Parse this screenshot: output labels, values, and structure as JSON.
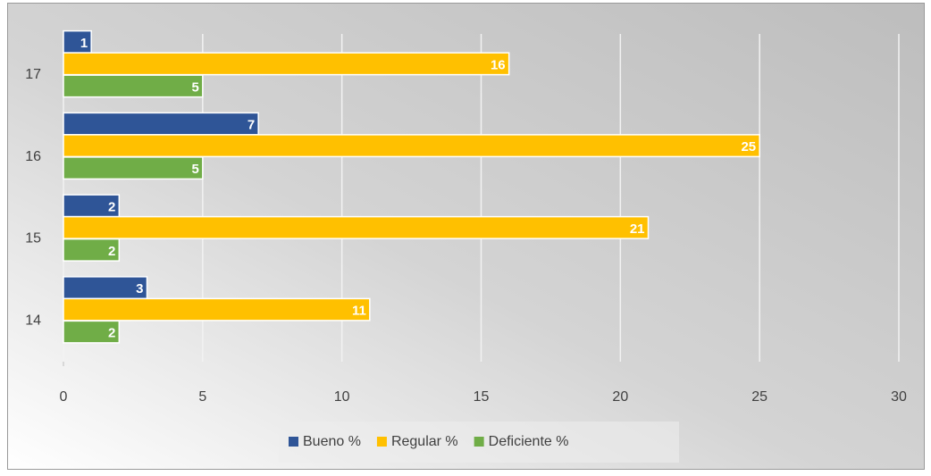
{
  "chart_data": {
    "type": "barh",
    "categories": [
      "14",
      "15",
      "16",
      "17"
    ],
    "series": [
      {
        "name": "Bueno %",
        "color": "#2f5597",
        "values": [
          3,
          2,
          7,
          1
        ]
      },
      {
        "name": "Regular %",
        "color": "#ffc000",
        "values": [
          11,
          21,
          25,
          16
        ]
      },
      {
        "name": "Deficiente %",
        "color": "#70ad47",
        "values": [
          2,
          2,
          5,
          5
        ]
      }
    ],
    "xlim": [
      0,
      30
    ],
    "xticks": [
      0,
      5,
      10,
      15,
      20,
      25,
      30
    ],
    "grid": true,
    "legend": "bottom"
  }
}
